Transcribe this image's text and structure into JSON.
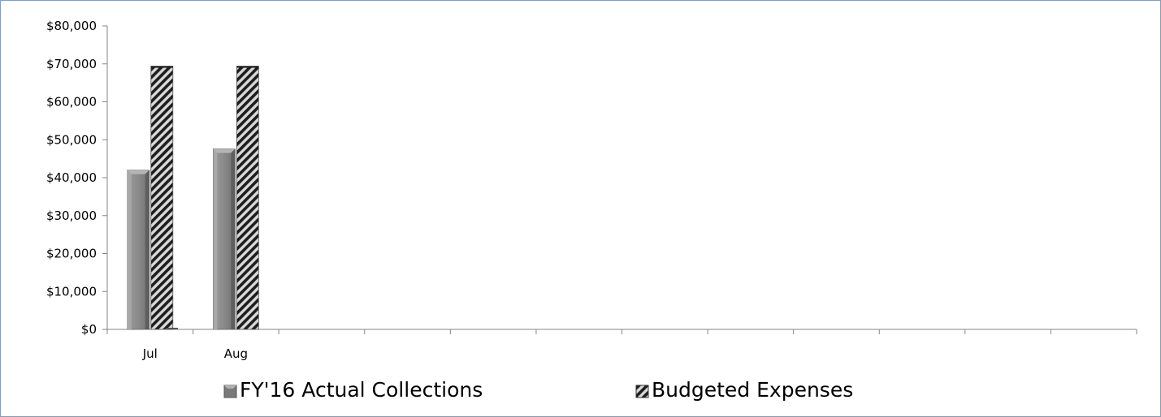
{
  "chart_data": {
    "type": "bar",
    "title": "",
    "xlabel": "",
    "ylabel": "",
    "categories": [
      "Jul",
      "Aug",
      "",
      "",
      "",
      "",
      "",
      "",
      "",
      "",
      "",
      ""
    ],
    "series": [
      {
        "name": "FY'16 Actual Collections",
        "values": [
          42000,
          47600,
          null,
          null,
          null,
          null,
          null,
          null,
          null,
          null,
          null,
          null
        ],
        "style": "bevel-gray",
        "color": "#8c8c8c"
      },
      {
        "name": "Budgeted Expenses",
        "values": [
          69400,
          69400,
          null,
          null,
          null,
          null,
          null,
          null,
          null,
          null,
          null,
          null
        ],
        "style": "diagonal-hatch",
        "color": "#333333"
      }
    ],
    "ylim": [
      0,
      80000
    ],
    "yticks": [
      0,
      10000,
      20000,
      30000,
      40000,
      50000,
      60000,
      70000,
      80000
    ],
    "ytick_labels": [
      "$0",
      "$10,000",
      "$20,000",
      "$30,000",
      "$40,000",
      "$50,000",
      "$60,000",
      "$70,000",
      "$80,000"
    ],
    "grid": false,
    "legend_position": "bottom"
  }
}
